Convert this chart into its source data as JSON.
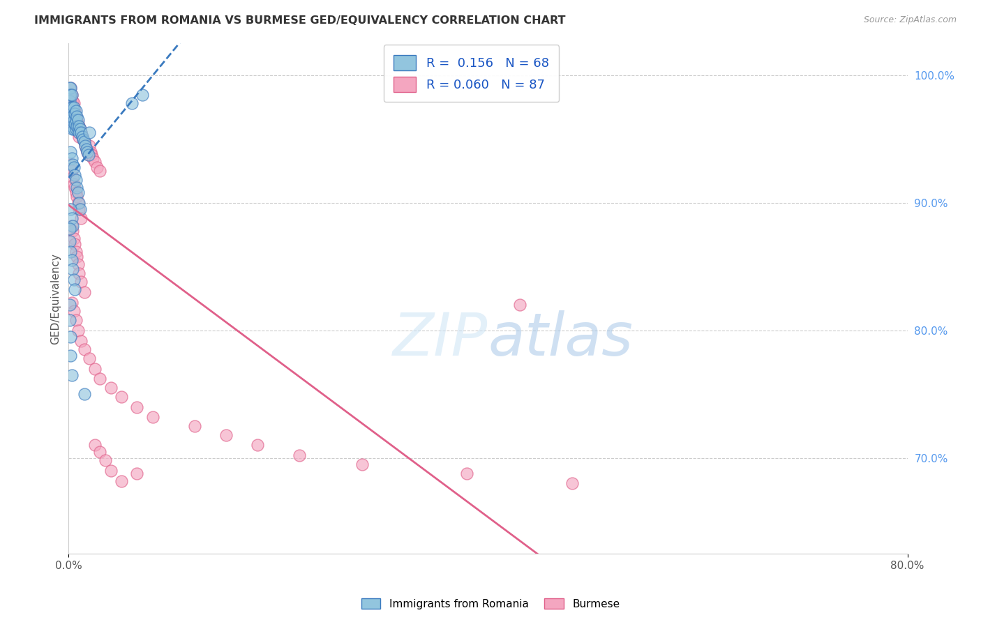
{
  "title": "IMMIGRANTS FROM ROMANIA VS BURMESE GED/EQUIVALENCY CORRELATION CHART",
  "source": "Source: ZipAtlas.com",
  "ylabel": "GED/Equivalency",
  "y_tick_labels": [
    "100.0%",
    "90.0%",
    "80.0%",
    "70.0%"
  ],
  "y_tick_values": [
    1.0,
    0.9,
    0.8,
    0.7
  ],
  "x_lim": [
    0.0,
    0.8
  ],
  "y_lim": [
    0.625,
    1.025
  ],
  "legend_label1": "Immigrants from Romania",
  "legend_label2": "Burmese",
  "r1": 0.156,
  "n1": 68,
  "r2": 0.06,
  "n2": 87,
  "color1": "#92c5de",
  "color2": "#f4a6c0",
  "trendline1_color": "#3a7abf",
  "trendline2_color": "#e0608a",
  "background_color": "#ffffff",
  "grid_color": "#cccccc",
  "title_color": "#333333",
  "source_color": "#999999",
  "right_axis_color": "#5599ee",
  "scatter1_x": [
    0.001,
    0.001,
    0.001,
    0.002,
    0.002,
    0.002,
    0.002,
    0.002,
    0.003,
    0.003,
    0.003,
    0.003,
    0.003,
    0.004,
    0.004,
    0.004,
    0.005,
    0.005,
    0.005,
    0.006,
    0.006,
    0.007,
    0.007,
    0.007,
    0.008,
    0.008,
    0.009,
    0.009,
    0.01,
    0.01,
    0.011,
    0.012,
    0.013,
    0.014,
    0.015,
    0.016,
    0.017,
    0.018,
    0.019,
    0.02,
    0.002,
    0.003,
    0.004,
    0.005,
    0.006,
    0.007,
    0.008,
    0.009,
    0.01,
    0.011,
    0.002,
    0.003,
    0.004,
    0.001,
    0.001,
    0.002,
    0.003,
    0.004,
    0.005,
    0.006,
    0.001,
    0.001,
    0.002,
    0.002,
    0.003,
    0.015,
    0.06,
    0.07
  ],
  "scatter1_y": [
    0.99,
    0.985,
    0.98,
    0.99,
    0.985,
    0.975,
    0.97,
    0.965,
    0.985,
    0.975,
    0.97,
    0.965,
    0.96,
    0.975,
    0.968,
    0.958,
    0.975,
    0.965,
    0.958,
    0.97,
    0.962,
    0.972,
    0.965,
    0.958,
    0.968,
    0.96,
    0.965,
    0.958,
    0.96,
    0.955,
    0.958,
    0.955,
    0.952,
    0.95,
    0.948,
    0.945,
    0.942,
    0.94,
    0.938,
    0.955,
    0.94,
    0.935,
    0.93,
    0.928,
    0.922,
    0.918,
    0.912,
    0.908,
    0.9,
    0.895,
    0.895,
    0.888,
    0.882,
    0.88,
    0.87,
    0.862,
    0.855,
    0.848,
    0.84,
    0.832,
    0.82,
    0.808,
    0.795,
    0.78,
    0.765,
    0.75,
    0.978,
    0.985
  ],
  "scatter2_x": [
    0.001,
    0.001,
    0.002,
    0.002,
    0.002,
    0.003,
    0.003,
    0.003,
    0.004,
    0.004,
    0.004,
    0.005,
    0.005,
    0.005,
    0.006,
    0.006,
    0.007,
    0.007,
    0.008,
    0.008,
    0.009,
    0.009,
    0.01,
    0.01,
    0.011,
    0.012,
    0.013,
    0.014,
    0.015,
    0.016,
    0.017,
    0.018,
    0.019,
    0.02,
    0.021,
    0.022,
    0.023,
    0.025,
    0.027,
    0.03,
    0.002,
    0.003,
    0.004,
    0.005,
    0.006,
    0.007,
    0.008,
    0.009,
    0.01,
    0.012,
    0.003,
    0.004,
    0.005,
    0.006,
    0.007,
    0.008,
    0.009,
    0.01,
    0.012,
    0.015,
    0.003,
    0.005,
    0.007,
    0.009,
    0.012,
    0.015,
    0.02,
    0.025,
    0.03,
    0.04,
    0.05,
    0.065,
    0.08,
    0.12,
    0.15,
    0.18,
    0.22,
    0.28,
    0.38,
    0.48,
    0.025,
    0.03,
    0.035,
    0.04,
    0.05,
    0.065,
    0.43
  ],
  "scatter2_y": [
    0.985,
    0.98,
    0.99,
    0.982,
    0.975,
    0.985,
    0.978,
    0.97,
    0.98,
    0.972,
    0.965,
    0.978,
    0.97,
    0.962,
    0.972,
    0.965,
    0.968,
    0.96,
    0.965,
    0.958,
    0.962,
    0.955,
    0.96,
    0.952,
    0.958,
    0.955,
    0.952,
    0.95,
    0.948,
    0.945,
    0.942,
    0.94,
    0.938,
    0.945,
    0.94,
    0.938,
    0.935,
    0.932,
    0.928,
    0.925,
    0.93,
    0.925,
    0.92,
    0.915,
    0.912,
    0.908,
    0.905,
    0.9,
    0.895,
    0.888,
    0.882,
    0.878,
    0.872,
    0.868,
    0.862,
    0.858,
    0.852,
    0.845,
    0.838,
    0.83,
    0.822,
    0.815,
    0.808,
    0.8,
    0.792,
    0.785,
    0.778,
    0.77,
    0.762,
    0.755,
    0.748,
    0.74,
    0.732,
    0.725,
    0.718,
    0.71,
    0.702,
    0.695,
    0.688,
    0.68,
    0.71,
    0.705,
    0.698,
    0.69,
    0.682,
    0.688,
    0.82
  ]
}
